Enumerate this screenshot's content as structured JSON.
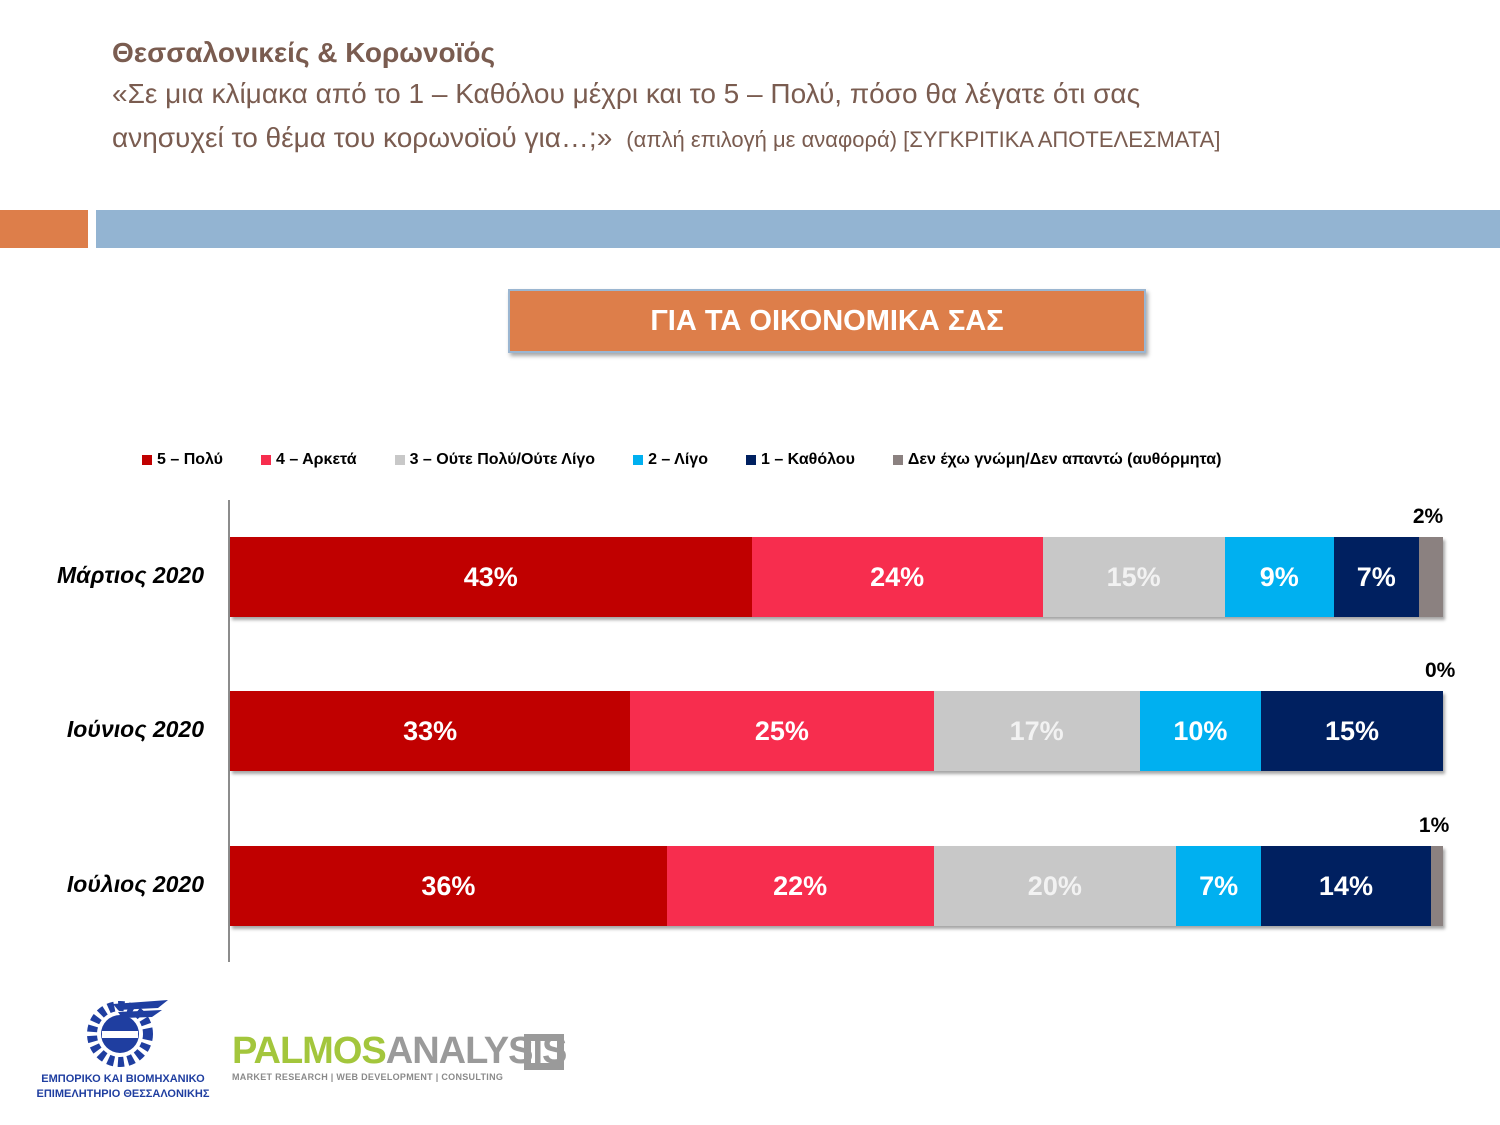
{
  "header": {
    "title": "Θεσσαλονικείς & Κορωνοϊός",
    "question_line1": "«Σε μια κλίμακα από το 1 – Καθόλου μέχρι και το 5 – Πολύ, πόσο θα λέγατε ότι σας",
    "question_line2": "ανησυχεί το θέμα του κορωνοϊού για…;»",
    "question_note": "(απλή επιλογή με αναφορά) [ΣΥΓΚΡΙΤΙΚΑ ΑΠΟΤΕΛΕΣΜΑΤΑ]"
  },
  "section_title": "ΓΙΑ ΤΑ ΟΙΚΟΝΟΜΙΚΑ ΣΑΣ",
  "colors": {
    "accent_orange": "#dd7e4a",
    "accent_blue": "#93b4d2",
    "title_text": "#7a5c50"
  },
  "chart_data": {
    "type": "bar",
    "orientation": "horizontal",
    "stacked": true,
    "percent_stacked": true,
    "title": "ΓΙΑ ΤΑ ΟΙΚΟΝΟΜΙΚΑ ΣΑΣ",
    "categories": [
      "Μάρτιος 2020",
      "Ιούνιος 2020",
      "Ιούλιος 2020"
    ],
    "series": [
      {
        "name": "5 – Πολύ",
        "color": "#c00000",
        "values": [
          43,
          33,
          36
        ],
        "labels": [
          "43%",
          "33%",
          "36%"
        ]
      },
      {
        "name": "4 – Αρκετά",
        "color": "#f72d4e",
        "values": [
          24,
          25,
          22
        ],
        "labels": [
          "24%",
          "25%",
          "22%"
        ]
      },
      {
        "name": "3 – Ούτε Πολύ/Ούτε Λίγο",
        "color": "#c8c8c8",
        "values": [
          15,
          17,
          20
        ],
        "labels": [
          "15%",
          "17%",
          "20%"
        ]
      },
      {
        "name": "2 – Λίγο",
        "color": "#00b0f0",
        "values": [
          9,
          10,
          7
        ],
        "labels": [
          "9%",
          "10%",
          "7%"
        ]
      },
      {
        "name": "1 – Καθόλου",
        "color": "#002060",
        "values": [
          7,
          15,
          14
        ],
        "labels": [
          "7%",
          "15%",
          "14%"
        ]
      },
      {
        "name": "Δεν έχω γνώμη/Δεν απαντώ (αυθόρμητα)",
        "color": "#8b8180",
        "values": [
          2,
          0,
          1
        ],
        "labels": [
          "2%",
          "0%",
          "1%"
        ]
      }
    ],
    "legend_position": "top",
    "xlim": [
      0,
      100
    ]
  },
  "logos": {
    "ebet_line1": "ΕΜΠΟΡΙΚΟ ΚΑΙ ΒΙΟΜΗΧΑΝΙΚΟ",
    "ebet_line2": "ΕΠΙΜΕΛΗΤΗΡΙΟ ΘΕΣΣΑΛΟΝΙΚΗΣ",
    "palmos_part1": "PALMOS",
    "palmos_part2": "ANALYSIS",
    "palmos_tagline": "MARKET RESEARCH | WEB DEVELOPMENT | CONSULTING"
  }
}
